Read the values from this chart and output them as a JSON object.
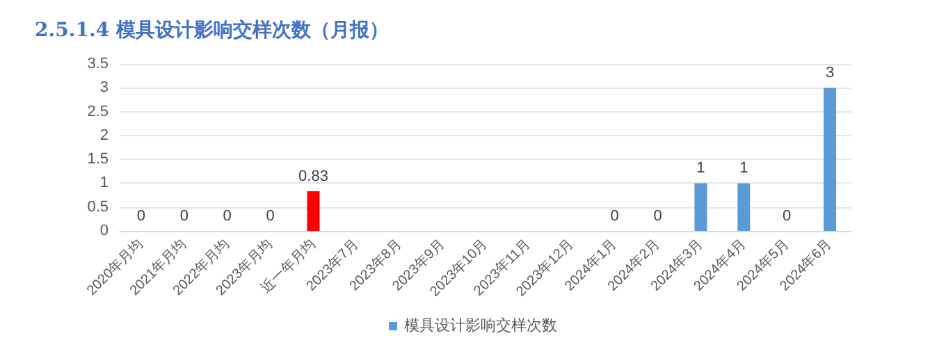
{
  "chart_data": {
    "type": "bar",
    "title": "2.5.1.4 模具设计影响交样次数（月报）",
    "categories": [
      "2020年月均",
      "2021年月均",
      "2022年月均",
      "2023年月均",
      "近一年月均",
      "2023年7月",
      "2023年8月",
      "2023年9月",
      "2023年10月",
      "2023年11月",
      "2023年12月",
      "2024年1月",
      "2024年2月",
      "2024年3月",
      "2024年4月",
      "2024年5月",
      "2024年6月"
    ],
    "series": [
      {
        "name": "模具设计影响交样次数",
        "color": "#5b9bd5",
        "colors": [
          "#5b9bd5",
          "#5b9bd5",
          "#5b9bd5",
          "#5b9bd5",
          "#ff0000",
          "#5b9bd5",
          "#5b9bd5",
          "#5b9bd5",
          "#5b9bd5",
          "#5b9bd5",
          "#5b9bd5",
          "#5b9bd5",
          "#5b9bd5",
          "#5b9bd5",
          "#5b9bd5",
          "#5b9bd5",
          "#5b9bd5"
        ],
        "values": [
          0,
          0,
          0,
          0,
          0.83,
          null,
          null,
          null,
          null,
          null,
          null,
          0,
          0,
          1,
          1,
          0,
          3
        ]
      }
    ],
    "ylim": [
      0,
      3.5
    ],
    "yticks": [
      0,
      0.5,
      1,
      1.5,
      2,
      2.5,
      3,
      3.5
    ],
    "grid": "y",
    "legend": "bottom",
    "data_labels": true
  }
}
